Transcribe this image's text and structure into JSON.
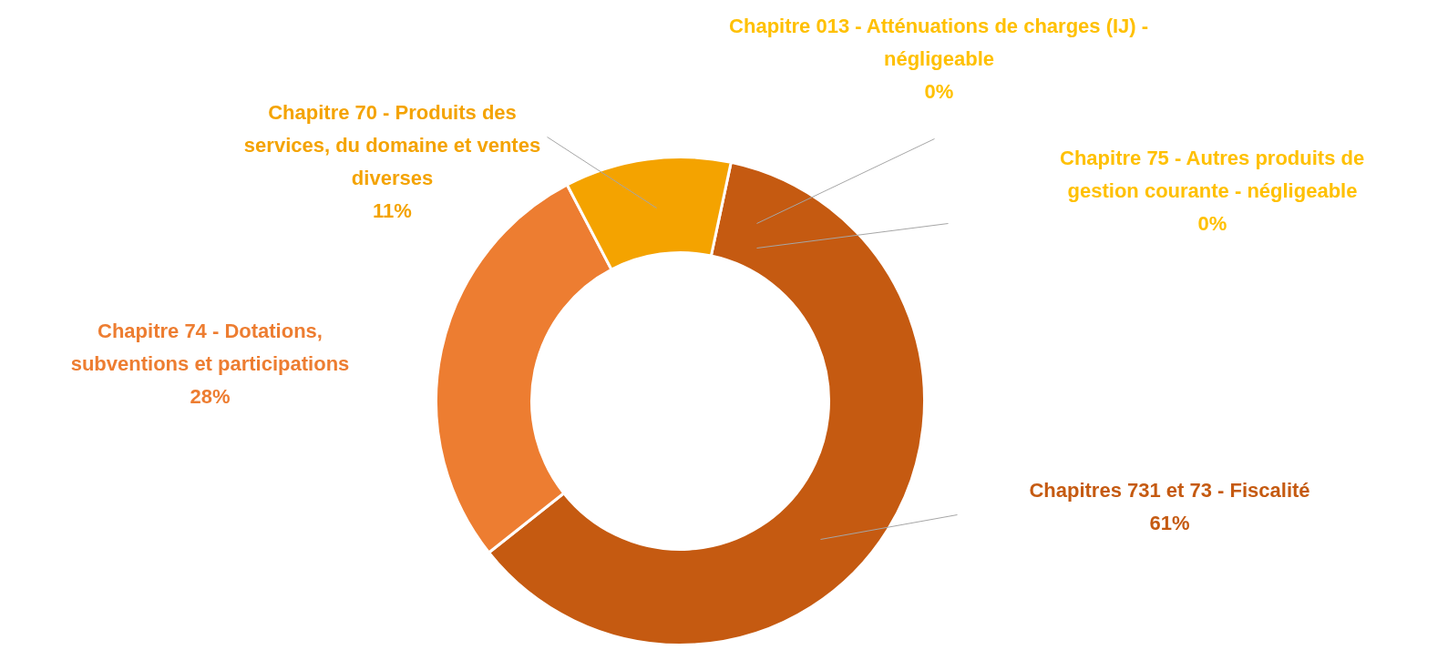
{
  "chart_data": {
    "type": "donut",
    "categories": [
      "Chapitres 731 et 73 - Fiscalité",
      "Chapitre 74 - Dotations, subventions et participations",
      "Chapitre 70 - Produits des services, du domaine et ventes diverses",
      "Chapitre 013 - Atténuations de charges (IJ) - négligeable",
      "Chapitre 75 - Autres produits de gestion courante - négligeable"
    ],
    "values": [
      61,
      28,
      11,
      0,
      0
    ],
    "value_labels": [
      "61%",
      "28%",
      "11%",
      "0%",
      "0%"
    ],
    "data_labels": true,
    "colors": [
      "#c55a11",
      "#ed7d31",
      "#f4a300",
      "#ffc000",
      "#ffc000"
    ]
  }
}
